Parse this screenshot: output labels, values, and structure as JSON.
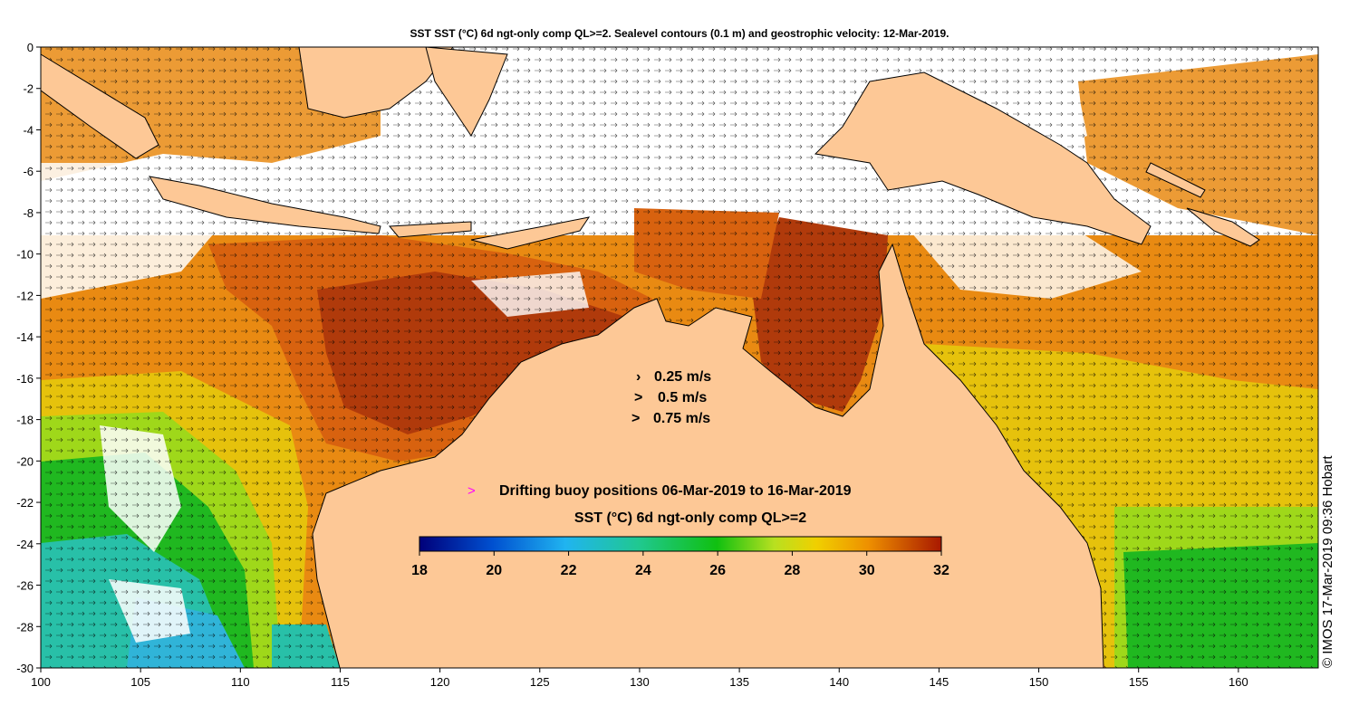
{
  "title": "SST SST (°C) 6d ngt-only comp QL>=2. Sealevel contours (0.1 m) and geostrophic velocity: 12-Mar-2019.",
  "credit": "© IMOS 17-Mar-2019 09:36 Hobart",
  "axes": {
    "lon_ticks": [
      "100",
      "105",
      "110",
      "115",
      "120",
      "125",
      "130",
      "135",
      "140",
      "145",
      "150",
      "155",
      "160"
    ],
    "lat_ticks": [
      "0",
      "-2",
      "-4",
      "-6",
      "-8",
      "-10",
      "-12",
      "-14",
      "-16",
      "-18",
      "-20",
      "-22",
      "-24",
      "-26",
      "-28",
      "-30"
    ],
    "lon_range": [
      100,
      164
    ],
    "lat_range": [
      0,
      -30
    ]
  },
  "velocity_legend": [
    {
      "label": "0.25 m/s",
      "speed": 0.25
    },
    {
      "label": "0.5 m/s",
      "speed": 0.5
    },
    {
      "label": "0.75 m/s",
      "speed": 0.75
    }
  ],
  "buoy_legend": {
    "marker": ">",
    "label": "Drifting buoy positions 06-Mar-2019 to 16-Mar-2019",
    "color": "#ff00ff"
  },
  "colorbar": {
    "title": "SST (°C) 6d ngt-only comp QL>=2",
    "ticks": [
      "18",
      "20",
      "22",
      "24",
      "26",
      "28",
      "30",
      "32"
    ],
    "range": [
      18,
      32
    ]
  },
  "colors": {
    "land": "#fdc896",
    "cloud": "#ffffff",
    "hot": "#b03a0b",
    "warm": "#d8620f",
    "orange": "#e98a12",
    "yellow": "#e6c20c",
    "lime": "#9fd81a",
    "green": "#20b820",
    "teal": "#28c0a8",
    "cyan": "#30b4d8"
  }
}
